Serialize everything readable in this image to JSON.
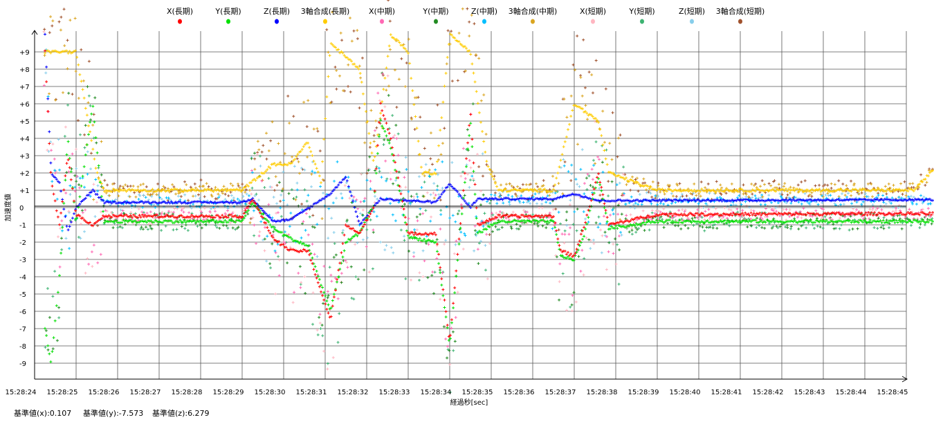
{
  "chart_data": {
    "type": "scatter",
    "title": "",
    "xlabel": "経過秒[sec]",
    "ylabel": "加速度値",
    "ylim": [
      -10,
      10
    ],
    "xlim_seconds": [
      0,
      21.67
    ],
    "x_tick_labels": [
      "15:28:24",
      "15:28:25",
      "15:28:26",
      "15:28:27",
      "15:28:28",
      "15:28:29",
      "15:28:30",
      "15:28:31",
      "15:28:32",
      "15:28:33",
      "15:28:34",
      "15:28:35",
      "15:28:36",
      "15:28:37",
      "15:28:38",
      "15:28:39",
      "15:28:40",
      "15:28:41",
      "15:28:42",
      "15:28:43",
      "15:28:44",
      "15:28:45"
    ],
    "y_tick_labels": [
      "+9",
      "+8",
      "+7",
      "+6",
      "+5",
      "+4",
      "+3",
      "+2",
      "+1",
      "0",
      "-1",
      "-2",
      "-3",
      "-4",
      "-5",
      "-6",
      "-7",
      "-8",
      "-9"
    ],
    "y_tick_values": [
      9,
      8,
      7,
      6,
      5,
      4,
      3,
      2,
      1,
      0,
      -1,
      -2,
      -3,
      -4,
      -5,
      -6,
      -7,
      -8,
      -9
    ],
    "grid": true,
    "legend_position": "top",
    "series": [
      {
        "name": "X(長期)",
        "color": "#ff0000",
        "kind": "long",
        "spread": 0.08,
        "points": [
          [
            0.25,
            9
          ],
          [
            0.4,
            1.5
          ],
          [
            0.6,
            -1
          ],
          [
            0.8,
            3
          ],
          [
            1.0,
            -0.4
          ],
          [
            1.4,
            -1
          ],
          [
            1.67,
            -0.5
          ],
          [
            5.0,
            -0.5
          ],
          [
            5.25,
            0.5
          ],
          [
            5.75,
            -1.8
          ],
          [
            6.17,
            -2.5
          ],
          [
            6.58,
            -2.5
          ],
          [
            7.13,
            -6.5
          ],
          [
            7.5,
            -1
          ],
          [
            7.83,
            -1.5
          ],
          [
            8.17,
            0
          ],
          [
            8.33,
            6
          ],
          [
            8.58,
            4
          ],
          [
            9.0,
            -1.5
          ],
          [
            9.67,
            -1.5
          ],
          [
            10.0,
            -7.8
          ],
          [
            10.5,
            5.5
          ],
          [
            10.67,
            -1
          ],
          [
            11.17,
            -0.5
          ],
          [
            12.5,
            -0.5
          ],
          [
            12.67,
            -2.5
          ],
          [
            13.0,
            -2.8
          ],
          [
            13.25,
            -1
          ],
          [
            13.58,
            2
          ],
          [
            13.83,
            -1
          ],
          [
            15.0,
            -0.4
          ],
          [
            21.67,
            -0.35
          ]
        ]
      },
      {
        "name": "Y(長期)",
        "color": "#00e000",
        "kind": "long",
        "spread": 0.08,
        "points": [
          [
            0.25,
            -7
          ],
          [
            0.4,
            -9
          ],
          [
            0.6,
            -4
          ],
          [
            0.8,
            4
          ],
          [
            1.0,
            -1
          ],
          [
            1.4,
            6
          ],
          [
            1.67,
            -0.8
          ],
          [
            5.0,
            -0.8
          ],
          [
            5.25,
            0.3
          ],
          [
            5.75,
            -1.2
          ],
          [
            6.17,
            -1.8
          ],
          [
            6.58,
            -2.2
          ],
          [
            7.13,
            -6
          ],
          [
            7.5,
            -2
          ],
          [
            7.83,
            -1.5
          ],
          [
            8.17,
            0.2
          ],
          [
            8.33,
            5
          ],
          [
            8.58,
            3.5
          ],
          [
            9.0,
            -1.7
          ],
          [
            9.67,
            -2
          ],
          [
            10.0,
            -8
          ],
          [
            10.5,
            5
          ],
          [
            10.67,
            -1.5
          ],
          [
            11.17,
            -0.8
          ],
          [
            12.5,
            -0.8
          ],
          [
            12.67,
            -2.8
          ],
          [
            13.0,
            -3
          ],
          [
            13.25,
            -1.5
          ],
          [
            13.58,
            1.8
          ],
          [
            13.83,
            -1.2
          ],
          [
            15.0,
            -0.8
          ],
          [
            21.67,
            -0.8
          ]
        ]
      },
      {
        "name": "Z(長期)",
        "color": "#0000ff",
        "kind": "long",
        "spread": 0.05,
        "points": [
          [
            0.25,
            10
          ],
          [
            0.4,
            2
          ],
          [
            0.6,
            1.4
          ],
          [
            0.8,
            -1.4
          ],
          [
            1.0,
            0
          ],
          [
            1.4,
            1
          ],
          [
            1.67,
            0.3
          ],
          [
            5.0,
            0.3
          ],
          [
            5.25,
            0.5
          ],
          [
            5.75,
            -0.8
          ],
          [
            6.17,
            -0.7
          ],
          [
            7.13,
            0.8
          ],
          [
            7.5,
            1.8
          ],
          [
            7.83,
            -1
          ],
          [
            8.33,
            0.5
          ],
          [
            9.67,
            0.3
          ],
          [
            10.0,
            1.4
          ],
          [
            10.5,
            0
          ],
          [
            10.67,
            0.5
          ],
          [
            12.5,
            0.5
          ],
          [
            13.0,
            0.8
          ],
          [
            13.58,
            0.4
          ],
          [
            21.67,
            0.45
          ]
        ]
      },
      {
        "name": "3軸合成(長期)",
        "color": "#ffcc00",
        "kind": "long",
        "spread": 0.08,
        "points": [
          [
            0.25,
            9
          ],
          [
            1.0,
            9
          ],
          [
            1.5,
            2
          ],
          [
            1.67,
            1
          ],
          [
            5.0,
            1
          ],
          [
            5.25,
            1.5
          ],
          [
            5.75,
            2.5
          ],
          [
            6.17,
            2.5
          ],
          [
            6.58,
            3.8
          ],
          [
            6.9,
            1.5
          ],
          [
            7.13,
            9.5
          ],
          [
            7.83,
            8
          ],
          [
            8.17,
            2.5
          ],
          [
            8.58,
            10
          ],
          [
            9.0,
            9
          ],
          [
            9.33,
            2
          ],
          [
            9.67,
            2
          ],
          [
            10.0,
            10
          ],
          [
            10.5,
            9
          ],
          [
            10.9,
            2.5
          ],
          [
            11.17,
            1
          ],
          [
            12.5,
            1
          ],
          [
            13.0,
            6
          ],
          [
            13.58,
            5
          ],
          [
            13.83,
            2
          ],
          [
            15.0,
            1
          ],
          [
            21.17,
            1
          ],
          [
            21.67,
            2.2
          ]
        ]
      },
      {
        "name": "X(中期)",
        "color": "#ff69b4",
        "kind": "mid",
        "base": 0,
        "spread": 0.7
      },
      {
        "name": "Y(中期)",
        "color": "#228b22",
        "kind": "mid",
        "base": 1,
        "spread": 0.9
      },
      {
        "name": "Z(中期)",
        "color": "#00bfff",
        "kind": "mid",
        "base": 2,
        "spread": 0.6
      },
      {
        "name": "3軸合成(中期)",
        "color": "#daa520",
        "kind": "mid",
        "base": 3,
        "spread": 0.8
      },
      {
        "name": "X(短期)",
        "color": "#ffb6c1",
        "kind": "short",
        "base": 0,
        "spread": 1.0
      },
      {
        "name": "Y(短期)",
        "color": "#3cb371",
        "kind": "short",
        "base": 1,
        "spread": 1.1
      },
      {
        "name": "Z(短期)",
        "color": "#87ceeb",
        "kind": "short",
        "base": 2,
        "spread": 0.9
      },
      {
        "name": "3軸合成(短期)",
        "color": "#a0522d",
        "kind": "short",
        "base": 3,
        "spread": 1.2
      }
    ]
  },
  "footer": {
    "ref_x": "基準値(x):0.107",
    "ref_y": "基準値(y):-7.573",
    "ref_z": "基準値(z):6.279"
  }
}
